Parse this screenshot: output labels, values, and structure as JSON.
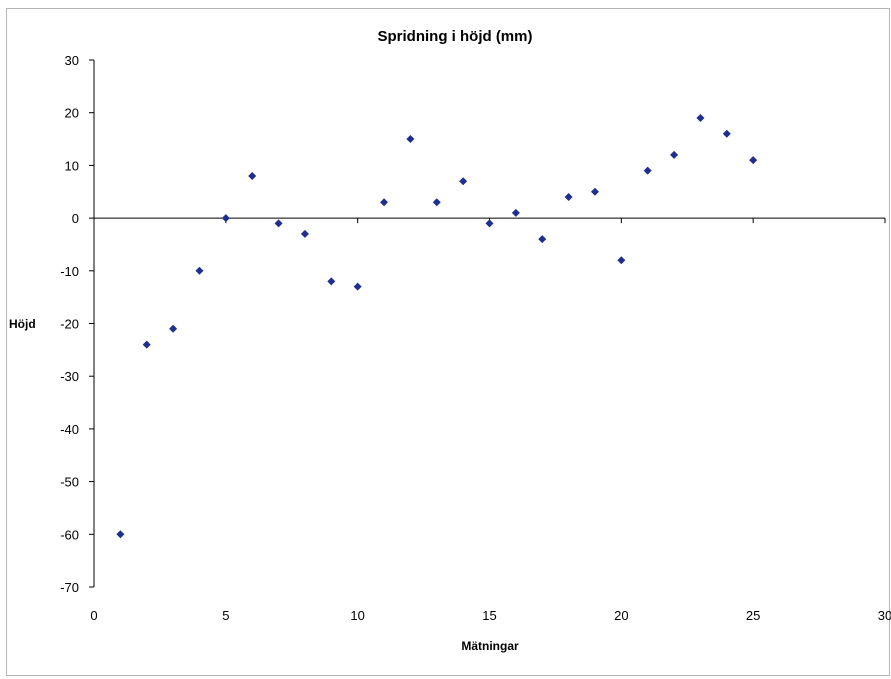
{
  "chart_data": {
    "type": "scatter",
    "title": "Spridning i höjd (mm)",
    "xlabel": "Mätningar",
    "ylabel": "Höjd",
    "xlim": [
      0,
      30
    ],
    "ylim": [
      -70,
      30
    ],
    "x_ticks": [
      "0",
      "5",
      "10",
      "15",
      "20",
      "25",
      "30"
    ],
    "y_ticks": [
      "30",
      "20",
      "10",
      "0",
      "-10",
      "-20",
      "-30",
      "-40",
      "-50",
      "-60",
      "-70"
    ],
    "grid": false,
    "legend": "none",
    "marker_color": "#1f2f8f",
    "x": [
      1,
      2,
      3,
      4,
      5,
      6,
      7,
      8,
      9,
      10,
      11,
      12,
      13,
      14,
      15,
      16,
      17,
      18,
      19,
      20,
      21,
      22,
      23,
      24,
      25
    ],
    "y": [
      -60,
      -24,
      -21,
      -10,
      0,
      8,
      -1,
      -3,
      -12,
      -13,
      3,
      15,
      3,
      7,
      -1,
      1,
      -4,
      4,
      5,
      -8,
      9,
      12,
      19,
      16,
      11
    ]
  }
}
